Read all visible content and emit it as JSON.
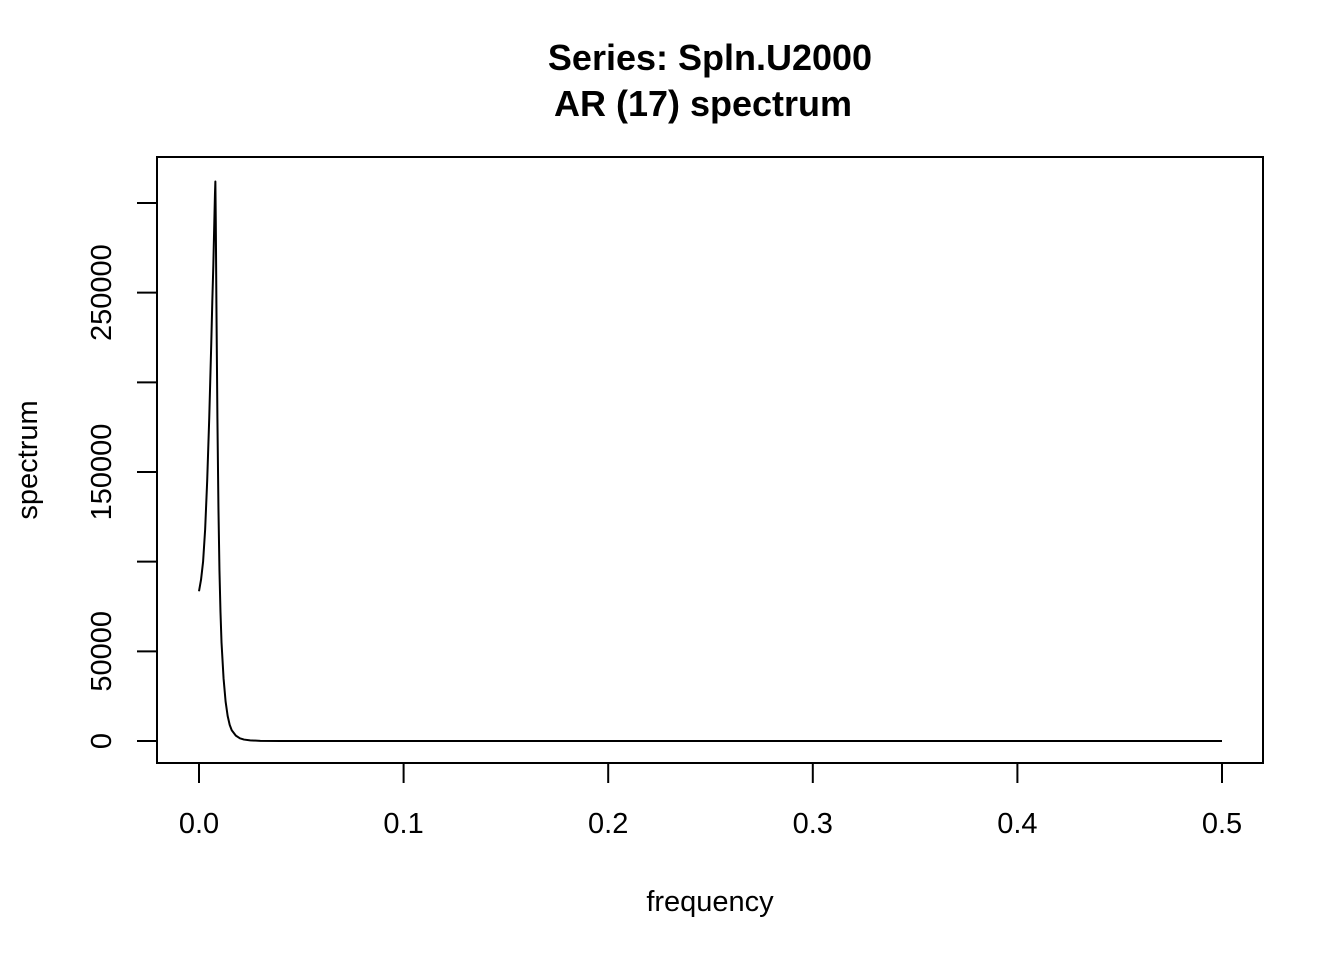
{
  "chart_data": {
    "type": "line",
    "title": "Series: Spln.U2000",
    "subtitle": "AR (17) spectrum",
    "xlabel": "frequency",
    "ylabel": "spectrum",
    "xlim": [
      0.0,
      0.5
    ],
    "ylim": [
      0,
      312000
    ],
    "grid": false,
    "x_ticks": [
      0.0,
      0.1,
      0.2,
      0.3,
      0.4,
      0.5
    ],
    "x_tick_labels": [
      "0.0",
      "0.1",
      "0.2",
      "0.3",
      "0.4",
      "0.5"
    ],
    "y_ticks": [
      0,
      50000,
      100000,
      150000,
      200000,
      250000,
      300000
    ],
    "y_tick_labels": [
      "0",
      "50000",
      "",
      "150000",
      "",
      "250000",
      ""
    ],
    "series": [
      {
        "color": "#000000",
        "x": [
          0.0,
          0.001,
          0.002,
          0.003,
          0.004,
          0.005,
          0.006,
          0.0065,
          0.007,
          0.0075,
          0.0078,
          0.008,
          0.0082,
          0.0085,
          0.009,
          0.0095,
          0.01,
          0.0105,
          0.011,
          0.012,
          0.013,
          0.014,
          0.015,
          0.016,
          0.018,
          0.02,
          0.022,
          0.025,
          0.03,
          0.04,
          0.06,
          0.1,
          0.2,
          0.3,
          0.4,
          0.5
        ],
        "y": [
          83500,
          90000,
          100000,
          118000,
          145000,
          180000,
          222000,
          245000,
          265000,
          290000,
          305000,
          312000,
          290000,
          245000,
          180000,
          130000,
          95000,
          72000,
          55000,
          35000,
          22000,
          14000,
          9000,
          6000,
          3000,
          1500,
          800,
          350,
          100,
          20,
          5,
          0,
          0,
          0,
          0,
          0
        ]
      }
    ]
  }
}
